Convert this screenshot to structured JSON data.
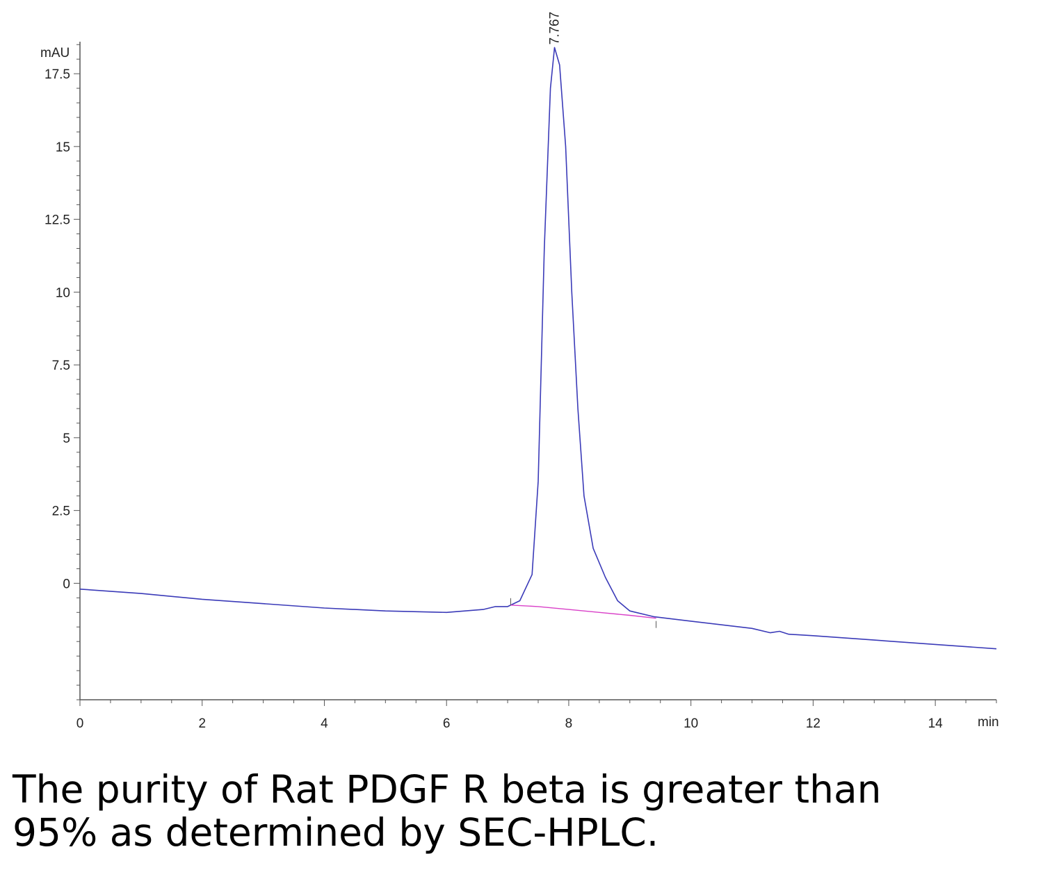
{
  "chart_data": {
    "type": "line",
    "ylabel": "mAU",
    "xlabel": "min",
    "xlim": [
      0,
      15
    ],
    "ylim": [
      -4,
      18.6
    ],
    "x_ticks": [
      "0",
      "2",
      "4",
      "6",
      "8",
      "10",
      "12",
      "14"
    ],
    "y_ticks": [
      "0",
      "2.5",
      "5",
      "7.5",
      "10",
      "12.5",
      "15",
      "17.5"
    ],
    "peak_label": "7.767",
    "series": [
      {
        "color": "#3a3ab8",
        "x": [
          0,
          1,
          2,
          3,
          4,
          5,
          6,
          6.6,
          6.8,
          7.0,
          7.2,
          7.4,
          7.5,
          7.6,
          7.7,
          7.767,
          7.85,
          7.95,
          8.05,
          8.15,
          8.25,
          8.4,
          8.6,
          8.8,
          9.0,
          9.4,
          10,
          11,
          11.3,
          11.45,
          11.6,
          12,
          13,
          14,
          15
        ],
        "y": [
          -0.2,
          -0.35,
          -0.55,
          -0.7,
          -0.85,
          -0.95,
          -1.0,
          -0.9,
          -0.8,
          -0.8,
          -0.6,
          0.3,
          3.5,
          11.5,
          17.0,
          18.4,
          17.8,
          15.0,
          10.0,
          6.0,
          3.0,
          1.2,
          0.2,
          -0.6,
          -0.95,
          -1.15,
          -1.3,
          -1.55,
          -1.7,
          -1.65,
          -1.75,
          -1.8,
          -1.95,
          -2.1,
          -2.25
        ]
      },
      {
        "color": "#d940c8",
        "x": [
          7.05,
          7.5,
          8.0,
          8.5,
          9.0,
          9.43
        ],
        "y": [
          -0.75,
          -0.8,
          -0.9,
          -1.0,
          -1.1,
          -1.2
        ]
      }
    ]
  },
  "caption": {
    "line1": "The purity of Rat PDGF R beta is greater than",
    "line2": "95% as determined by SEC-HPLC."
  }
}
